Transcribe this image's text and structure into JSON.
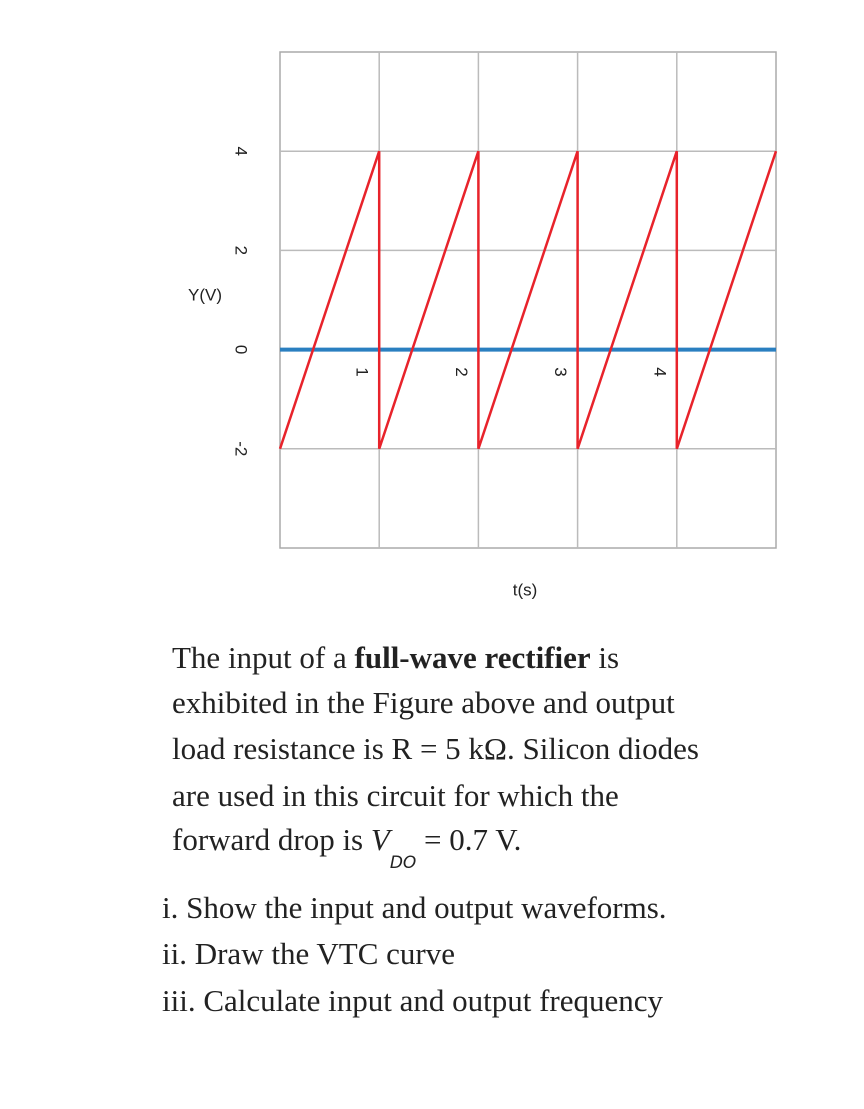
{
  "chart_data": {
    "type": "line",
    "y_label": "Y(V)",
    "x_label": "t(s)",
    "series": [
      {
        "color": "#e8232b",
        "x": [
          0,
          1,
          1,
          2,
          2,
          3,
          3,
          4,
          4,
          5
        ],
        "values": [
          -2,
          4,
          -2,
          4,
          -2,
          4,
          -2,
          4,
          -2,
          4
        ]
      },
      {
        "color": "#2a7fc0",
        "x": [
          0,
          5
        ],
        "values": [
          0,
          0
        ]
      }
    ],
    "xlim": [
      0,
      5
    ],
    "ylim": [
      -4,
      6
    ],
    "xticks": [
      1,
      2,
      3,
      4
    ],
    "yticks": [
      -2,
      0,
      2,
      4
    ],
    "grid": true
  },
  "question": {
    "line_1": "The input of a ",
    "line_1_bold": "full-wave rectifier",
    "line_1_end": " is",
    "line_2": "exhibited in the Figure above and output",
    "line_3": "load resistance is R = 5 kΩ. Silicon diodes",
    "line_4": "are used in this circuit for which the",
    "line_5": "forward drop is ",
    "line_5_symbol": "V",
    "line_5_subscript": "DO",
    "line_5_end": " = 0.7 V.",
    "items": [
      "i. Show the input and output waveforms.",
      "ii. Draw the VTC curve",
      "iii. Calculate input and output frequency"
    ]
  }
}
